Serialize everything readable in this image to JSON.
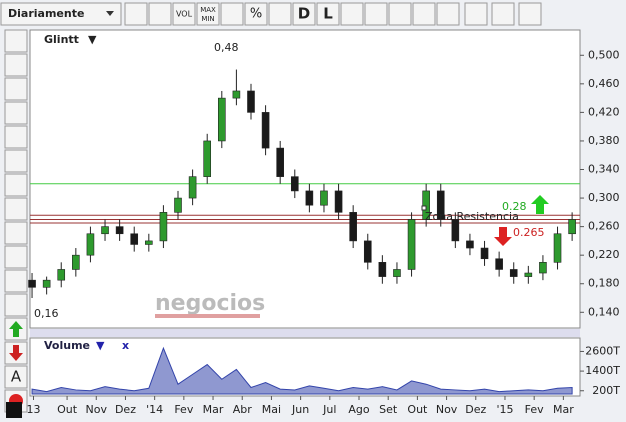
{
  "toolbar": {
    "period": "Diariamente",
    "vol": "VOL",
    "max": "MAX",
    "min": "MIN",
    "pct": "%",
    "d": "D",
    "l": "L"
  },
  "left_toolbar": {
    "text_tool": "A"
  },
  "watermark": "negocios",
  "chart_data": [
    {
      "type": "candlestick",
      "title": "Glintt",
      "title_marker": "▼",
      "x": [
        -0.2,
        0.3,
        0.8,
        1.3,
        1.8,
        2.3,
        2.8,
        3.3,
        3.8,
        4.3,
        4.8,
        5.3,
        5.8,
        6.3,
        6.8,
        7.3,
        7.8,
        8.3,
        8.8,
        9.3,
        9.8,
        10.3,
        10.8,
        11.3,
        11.8,
        12.3,
        12.8,
        13.3,
        13.8,
        14.3,
        14.8,
        15.3,
        15.8,
        16.3,
        16.8,
        17.3,
        17.8,
        18.3
      ],
      "open": [
        0.185,
        0.175,
        0.185,
        0.2,
        0.22,
        0.25,
        0.26,
        0.25,
        0.235,
        0.24,
        0.28,
        0.3,
        0.33,
        0.38,
        0.44,
        0.45,
        0.42,
        0.37,
        0.33,
        0.31,
        0.29,
        0.31,
        0.28,
        0.24,
        0.21,
        0.19,
        0.2,
        0.27,
        0.31,
        0.27,
        0.24,
        0.23,
        0.215,
        0.2,
        0.19,
        0.195,
        0.21,
        0.25
      ],
      "high": [
        0.195,
        0.19,
        0.21,
        0.23,
        0.26,
        0.27,
        0.27,
        0.26,
        0.25,
        0.29,
        0.31,
        0.34,
        0.39,
        0.45,
        0.48,
        0.46,
        0.43,
        0.38,
        0.34,
        0.32,
        0.32,
        0.32,
        0.29,
        0.25,
        0.22,
        0.21,
        0.28,
        0.32,
        0.32,
        0.28,
        0.25,
        0.24,
        0.225,
        0.21,
        0.205,
        0.22,
        0.26,
        0.28
      ],
      "low": [
        0.16,
        0.165,
        0.175,
        0.19,
        0.21,
        0.24,
        0.24,
        0.225,
        0.225,
        0.23,
        0.27,
        0.29,
        0.32,
        0.37,
        0.43,
        0.41,
        0.36,
        0.32,
        0.3,
        0.28,
        0.28,
        0.27,
        0.23,
        0.2,
        0.18,
        0.18,
        0.19,
        0.26,
        0.26,
        0.23,
        0.22,
        0.205,
        0.19,
        0.18,
        0.18,
        0.185,
        0.2,
        0.24
      ],
      "close": [
        0.175,
        0.185,
        0.2,
        0.22,
        0.25,
        0.26,
        0.25,
        0.235,
        0.24,
        0.28,
        0.3,
        0.33,
        0.38,
        0.44,
        0.45,
        0.42,
        0.37,
        0.33,
        0.31,
        0.29,
        0.31,
        0.28,
        0.24,
        0.21,
        0.19,
        0.2,
        0.27,
        0.31,
        0.27,
        0.24,
        0.23,
        0.215,
        0.2,
        0.19,
        0.195,
        0.21,
        0.25,
        0.27
      ],
      "up_color": "#2e9a2e",
      "down_color": "#1a1a1a",
      "xlim": [
        -0.27,
        18.57
      ],
      "ylim": [
        0.118,
        0.534
      ],
      "yticks": [
        {
          "value": 0.14,
          "label": "0,140"
        },
        {
          "value": 0.18,
          "label": "0,180"
        },
        {
          "value": 0.22,
          "label": "0,220"
        },
        {
          "value": 0.26,
          "label": "0,260"
        },
        {
          "value": 0.3,
          "label": "0,300"
        },
        {
          "value": 0.34,
          "label": "0,340"
        },
        {
          "value": 0.38,
          "label": "0,380"
        },
        {
          "value": 0.42,
          "label": "0,420"
        },
        {
          "value": 0.46,
          "label": "0,460"
        },
        {
          "value": 0.5,
          "label": "0,500"
        }
      ],
      "hlines": [
        {
          "value": 0.32,
          "color": "#44cc44"
        },
        {
          "value": 0.276,
          "color": "#993333"
        },
        {
          "value": 0.27,
          "color": "#993333"
        },
        {
          "value": 0.265,
          "color": "#993333"
        }
      ],
      "annotations": [
        "0,48",
        "0,16",
        "0.28",
        "0.265",
        "Zona Resistencia"
      ]
    },
    {
      "type": "area",
      "title": "Volume",
      "title_marker": "▼",
      "close_marker": "x",
      "color": "#3344aa",
      "x": [
        -0.2,
        0.3,
        0.8,
        1.3,
        1.8,
        2.3,
        2.8,
        3.3,
        3.8,
        4.3,
        4.8,
        5.3,
        5.8,
        6.3,
        6.8,
        7.3,
        7.8,
        8.3,
        8.8,
        9.3,
        9.8,
        10.3,
        10.8,
        11.3,
        11.8,
        12.3,
        12.8,
        13.3,
        13.8,
        14.3,
        14.8,
        15.3,
        15.8,
        16.3,
        16.8,
        17.3,
        17.8,
        18.3
      ],
      "values": [
        300,
        150,
        400,
        250,
        200,
        450,
        300,
        200,
        350,
        2800,
        600,
        1200,
        1800,
        900,
        1500,
        400,
        700,
        300,
        250,
        500,
        350,
        200,
        400,
        300,
        450,
        250,
        800,
        600,
        300,
        250,
        200,
        300,
        150,
        200,
        250,
        200,
        350,
        400
      ],
      "xlim": [
        -0.27,
        18.57
      ],
      "ylim": [
        -120,
        3420
      ],
      "yticks": [
        {
          "value": 200,
          "label": "200T"
        },
        {
          "value": 1400,
          "label": "1400T"
        },
        {
          "value": 2600,
          "label": "2600T"
        }
      ],
      "xticks": [
        {
          "value": -0.15,
          "label": "13"
        },
        {
          "value": 1,
          "label": "Out"
        },
        {
          "value": 2,
          "label": "Nov"
        },
        {
          "value": 3,
          "label": "Dez"
        },
        {
          "value": 4,
          "label": "'14"
        },
        {
          "value": 5,
          "label": "Fev"
        },
        {
          "value": 6,
          "label": "Mar"
        },
        {
          "value": 7,
          "label": "Abr"
        },
        {
          "value": 8,
          "label": "Mai"
        },
        {
          "value": 9,
          "label": "Jun"
        },
        {
          "value": 10,
          "label": "Jul"
        },
        {
          "value": 11,
          "label": "Ago"
        },
        {
          "value": 12,
          "label": "Set"
        },
        {
          "value": 13,
          "label": "Out"
        },
        {
          "value": 14,
          "label": "Nov"
        },
        {
          "value": 15,
          "label": "Dez"
        },
        {
          "value": 16,
          "label": "'15"
        },
        {
          "value": 17,
          "label": "Fev"
        },
        {
          "value": 18,
          "label": "Mar"
        }
      ]
    }
  ]
}
